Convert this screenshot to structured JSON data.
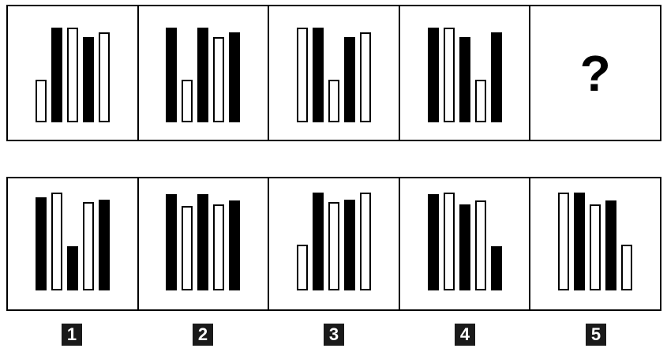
{
  "question_row": {
    "panels": [
      {
        "bars": [
          {
            "color": "white",
            "level": 0.45
          },
          {
            "color": "black",
            "level": 1.0
          },
          {
            "color": "white",
            "level": 1.0
          },
          {
            "color": "black",
            "level": 0.9
          },
          {
            "color": "white",
            "level": 0.95
          }
        ]
      },
      {
        "bars": [
          {
            "color": "black",
            "level": 1.0
          },
          {
            "color": "white",
            "level": 0.45
          },
          {
            "color": "black",
            "level": 1.0
          },
          {
            "color": "white",
            "level": 0.9
          },
          {
            "color": "black",
            "level": 0.95
          }
        ]
      },
      {
        "bars": [
          {
            "color": "white",
            "level": 1.0
          },
          {
            "color": "black",
            "level": 1.0
          },
          {
            "color": "white",
            "level": 0.45
          },
          {
            "color": "black",
            "level": 0.9
          },
          {
            "color": "white",
            "level": 0.95
          }
        ]
      },
      {
        "bars": [
          {
            "color": "black",
            "level": 1.0
          },
          {
            "color": "white",
            "level": 1.0
          },
          {
            "color": "black",
            "level": 0.9
          },
          {
            "color": "white",
            "level": 0.45
          },
          {
            "color": "black",
            "level": 0.95
          }
        ]
      }
    ],
    "missing_symbol": "?"
  },
  "answer_row": {
    "options": [
      {
        "number": "1",
        "bars": [
          {
            "color": "black",
            "level": 0.95
          },
          {
            "color": "white",
            "level": 1.0
          },
          {
            "color": "black",
            "level": 0.45
          },
          {
            "color": "white",
            "level": 0.9
          },
          {
            "color": "black",
            "level": 0.93
          }
        ]
      },
      {
        "number": "2",
        "bars": [
          {
            "color": "black",
            "level": 0.98
          },
          {
            "color": "white",
            "level": 0.86
          },
          {
            "color": "black",
            "level": 0.98
          },
          {
            "color": "white",
            "level": 0.88
          },
          {
            "color": "black",
            "level": 0.92
          }
        ]
      },
      {
        "number": "3",
        "bars": [
          {
            "color": "white",
            "level": 0.47
          },
          {
            "color": "black",
            "level": 1.0
          },
          {
            "color": "white",
            "level": 0.9
          },
          {
            "color": "black",
            "level": 0.93
          },
          {
            "color": "white",
            "level": 1.0
          }
        ]
      },
      {
        "number": "4",
        "bars": [
          {
            "color": "black",
            "level": 0.98
          },
          {
            "color": "white",
            "level": 1.0
          },
          {
            "color": "black",
            "level": 0.88
          },
          {
            "color": "white",
            "level": 0.92
          },
          {
            "color": "black",
            "level": 0.45
          }
        ]
      },
      {
        "number": "5",
        "bars": [
          {
            "color": "white",
            "level": 1.0
          },
          {
            "color": "black",
            "level": 1.0
          },
          {
            "color": "white",
            "level": 0.88
          },
          {
            "color": "black",
            "level": 0.92
          },
          {
            "color": "white",
            "level": 0.47
          }
        ]
      }
    ]
  },
  "colors": {
    "bar_black": "#000000",
    "bar_white": "#ffffff",
    "label_bg": "#1a1a1a",
    "label_text": "#ffffff"
  }
}
